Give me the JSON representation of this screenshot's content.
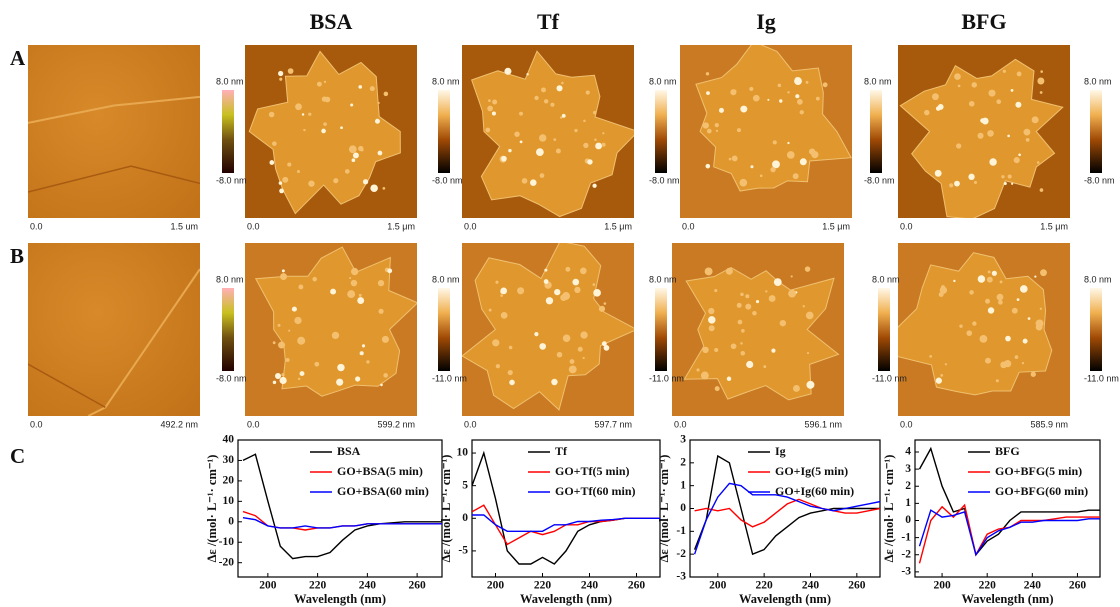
{
  "headers": [
    "BSA",
    "Tf",
    "Ig",
    "BFG"
  ],
  "panel_labels": [
    "A",
    "B",
    "C"
  ],
  "afm_rows": [
    {
      "images": [
        {
          "origin": "0.0",
          "scale": "1.5 um"
        },
        {
          "origin": "0.0",
          "scale": "1.5 μm"
        },
        {
          "origin": "0.0",
          "scale": "1.5 μm"
        },
        {
          "origin": "0.0",
          "scale": "1.5 μm"
        },
        {
          "origin": "0.0",
          "scale": "1.5 μm"
        }
      ],
      "colorbars": [
        {
          "max": "8.0 nm",
          "min": "-8.0 nm"
        },
        {
          "max": "8.0 nm",
          "min": "-8.0 nm"
        },
        {
          "max": "8.0 nm",
          "min": "-8.0 nm"
        },
        {
          "max": "8.0 nm",
          "min": "-8.0 nm"
        },
        {
          "max": "8.0 nm",
          "min": "-8.0 nm"
        }
      ]
    },
    {
      "images": [
        {
          "origin": "0.0",
          "scale": "492.2 nm"
        },
        {
          "origin": "0.0",
          "scale": "599.2 nm"
        },
        {
          "origin": "0.0",
          "scale": "597.7 nm"
        },
        {
          "origin": "0.0",
          "scale": "596.1 nm"
        },
        {
          "origin": "0.0",
          "scale": "585.9 nm"
        }
      ],
      "colorbars": [
        {
          "max": "8.0 nm",
          "min": "-8.0 nm"
        },
        {
          "max": "8.0 nm",
          "min": "-11.0 nm"
        },
        {
          "max": "8.0 nm",
          "min": "-11.0 nm"
        },
        {
          "max": "8.0 nm",
          "min": "-11.0 nm"
        },
        {
          "max": "8.0 nm",
          "min": "-11.0 nm"
        }
      ]
    }
  ],
  "chart_data": [
    {
      "type": "line",
      "x_label": "Wavelength (nm)",
      "y_label": "Δε /(mol· L⁻¹· cm⁻¹)",
      "x": [
        190,
        195,
        200,
        205,
        210,
        215,
        220,
        225,
        230,
        235,
        240,
        245,
        250,
        255,
        260,
        265,
        270
      ],
      "xlim": [
        188,
        270
      ],
      "xticks": [
        200,
        220,
        240,
        260
      ],
      "ylim": [
        -27,
        40
      ],
      "yticks": [
        -20,
        -10,
        0,
        10,
        20,
        30,
        40
      ],
      "series": [
        {
          "name": "BSA",
          "color": "#000000",
          "values": [
            30,
            33,
            10,
            -12,
            -18,
            -17,
            -17,
            -15,
            -9,
            -4,
            -2,
            -1,
            -0.5,
            0,
            0,
            0,
            0
          ]
        },
        {
          "name": "GO+BSA(5 min)",
          "color": "#ff0000",
          "values": [
            5,
            3,
            -2,
            -3,
            -3,
            -4,
            -3,
            -3,
            -2,
            -2,
            -1,
            -1,
            -1,
            -1,
            -1,
            -1,
            -1
          ]
        },
        {
          "name": "GO+BSA(60 min)",
          "color": "#0000ff",
          "values": [
            2,
            1,
            -2,
            -3,
            -3,
            -2,
            -3,
            -3,
            -2,
            -2,
            -1,
            -1,
            -1,
            -1,
            -1,
            -1,
            -1
          ]
        }
      ]
    },
    {
      "type": "line",
      "x_label": "Wavelength (nm)",
      "y_label": "Δε /(mol· L⁻¹· cm⁻¹)",
      "x": [
        190,
        195,
        200,
        205,
        210,
        215,
        220,
        225,
        230,
        235,
        240,
        245,
        250,
        255,
        260,
        265,
        270
      ],
      "xlim": [
        190,
        270
      ],
      "xticks": [
        200,
        220,
        240,
        260
      ],
      "ylim": [
        -9,
        12
      ],
      "yticks": [
        -5,
        0,
        5,
        10
      ],
      "series": [
        {
          "name": "Tf",
          "color": "#000000",
          "values": [
            5,
            10,
            3,
            -5,
            -7,
            -7,
            -6,
            -7,
            -5,
            -2,
            -1,
            -0.5,
            -0.3,
            0,
            0,
            0,
            0
          ]
        },
        {
          "name": "GO+Tf(5 min)",
          "color": "#ff0000",
          "values": [
            1,
            2,
            -1,
            -4,
            -3,
            -2,
            -2.5,
            -2,
            -1,
            -1,
            -0.5,
            -0.5,
            -0.3,
            0,
            0,
            0,
            0
          ]
        },
        {
          "name": "GO+Tf(60 min)",
          "color": "#0000ff",
          "values": [
            0.5,
            0.5,
            -1,
            -2,
            -2,
            -2,
            -2,
            -1,
            -1,
            -0.5,
            -0.5,
            -0.3,
            -0.2,
            0,
            0,
            0,
            0
          ]
        }
      ]
    },
    {
      "type": "line",
      "x_label": "Wavelength (nm)",
      "y_label": "Δε /(mol· L⁻¹· cm⁻¹)",
      "x": [
        190,
        195,
        200,
        205,
        210,
        215,
        220,
        225,
        230,
        235,
        240,
        245,
        250,
        255,
        260,
        265,
        270
      ],
      "xlim": [
        188,
        270
      ],
      "xticks": [
        200,
        220,
        240,
        260
      ],
      "ylim": [
        -3,
        3
      ],
      "yticks": [
        -3,
        -2,
        -1,
        0,
        1,
        2,
        3
      ],
      "series": [
        {
          "name": "Ig",
          "color": "#000000",
          "values": [
            -1.8,
            -0.5,
            2.3,
            2,
            0,
            -2,
            -1.8,
            -1.2,
            -0.8,
            -0.4,
            -0.2,
            -0.1,
            0,
            0,
            0,
            0,
            0
          ]
        },
        {
          "name": "GO+Ig(5 min)",
          "color": "#ff0000",
          "values": [
            -0.1,
            0,
            -0.1,
            0,
            -0.5,
            -0.8,
            -0.6,
            -0.2,
            0.2,
            0.4,
            0.2,
            0,
            -0.1,
            -0.2,
            -0.2,
            -0.1,
            0
          ]
        },
        {
          "name": "GO+Ig(60 min)",
          "color": "#0000ff",
          "values": [
            -2,
            -0.5,
            0.5,
            1.1,
            1,
            0.6,
            0.6,
            0.6,
            0.5,
            0.3,
            0.1,
            0,
            -0.1,
            0,
            0.1,
            0.2,
            0.3
          ]
        }
      ]
    },
    {
      "type": "line",
      "x_label": "Wavelength (nm)",
      "y_label": "Δε /(mol· L⁻¹· cm⁻¹)",
      "x": [
        190,
        195,
        200,
        205,
        210,
        215,
        220,
        225,
        230,
        235,
        240,
        245,
        250,
        255,
        260,
        265,
        270
      ],
      "xlim": [
        188,
        270
      ],
      "xticks": [
        200,
        220,
        240,
        260
      ],
      "ylim": [
        -3.3,
        4.7
      ],
      "yticks": [
        -3,
        -2,
        -1,
        0,
        1,
        2,
        3,
        4
      ],
      "series": [
        {
          "name": "BFG",
          "color": "#000000",
          "values": [
            3,
            4.2,
            2,
            0.5,
            0.7,
            -2,
            -1.2,
            -0.8,
            0,
            0.5,
            0.5,
            0.5,
            0.5,
            0.5,
            0.5,
            0.6,
            0.6
          ]
        },
        {
          "name": "GO+BFG(5 min)",
          "color": "#ff0000",
          "values": [
            -2.5,
            0,
            0.8,
            0.2,
            0.9,
            -2,
            -0.8,
            -0.5,
            -0.4,
            0,
            0,
            0,
            0.1,
            0.2,
            0.2,
            0.2,
            0.2
          ]
        },
        {
          "name": "GO+BFG(60 min)",
          "color": "#0000ff",
          "values": [
            -1.5,
            0.6,
            0.2,
            0.3,
            0.5,
            -2,
            -1,
            -0.6,
            -0.4,
            -0.1,
            -0.1,
            0,
            0,
            0,
            0,
            0.1,
            0.1
          ]
        }
      ]
    }
  ]
}
